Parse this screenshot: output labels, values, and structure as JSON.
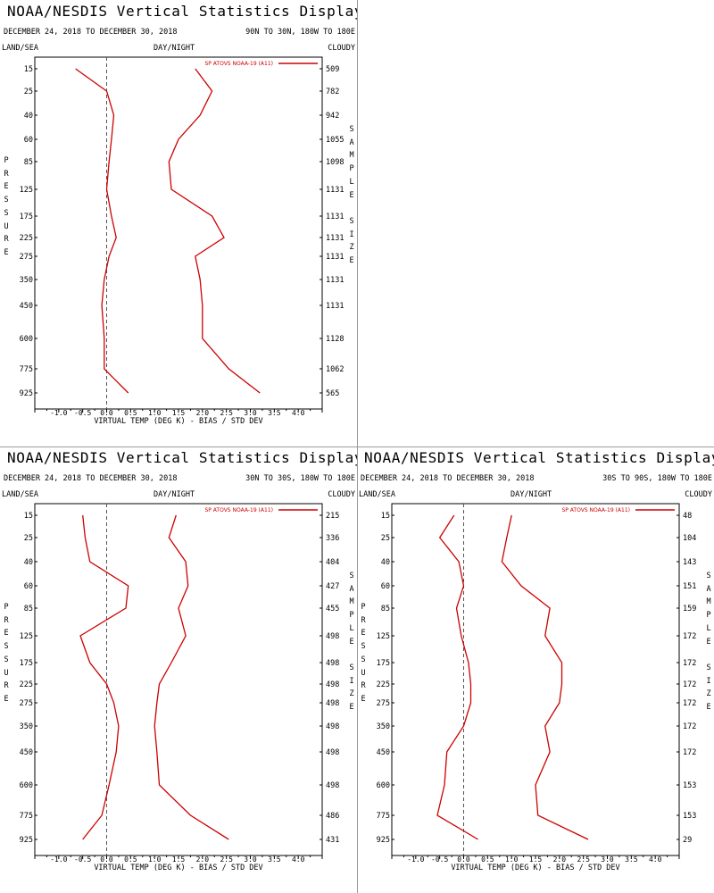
{
  "page": {
    "title": "NOAA/NESDIS Vertical Statistics Display",
    "date_range": "DECEMBER 24, 2018 TO DECEMBER 30, 2018",
    "land_sea": "LAND/SEA",
    "day_night": "DAY/NIGHT",
    "cloudy": "CLOUDY",
    "left_axis_label": "PRESSURE",
    "right_axis_label": "SAMPLE SIZE",
    "line_color": "#cc0000",
    "zero_line_color": "#555555"
  },
  "chart_data": [
    {
      "type": "line",
      "region": "90N TO 30N, 180W TO 180E",
      "xlabel": "VIRTUAL TEMP (DEG K) - BIAS / STD DEV",
      "ylabel": "PRESSURE",
      "xlim": [
        -1.5,
        4.5
      ],
      "xticks": [
        "-1.0",
        "-0.5",
        "0.0",
        "0.5",
        "1.0",
        "1.5",
        "2.0",
        "2.5",
        "3.0",
        "3.5",
        "4.0"
      ],
      "pressure_levels": [
        "15",
        "25",
        "40",
        "60",
        "85",
        "125",
        "175",
        "225",
        "275",
        "350",
        "450",
        "600",
        "775",
        "925"
      ],
      "sample_size": [
        "509",
        "782",
        "942",
        "1055",
        "1098",
        "1131",
        "1131",
        "1131",
        "1131",
        "1131",
        "1131",
        "1128",
        "1062",
        "565"
      ],
      "series": [
        {
          "name": "SP ATOVS NOAA-19 (A11)",
          "role": "bias",
          "values": [
            -0.65,
            0.0,
            0.15,
            0.1,
            0.05,
            0.0,
            0.1,
            0.2,
            0.05,
            -0.05,
            -0.1,
            -0.05,
            -0.05,
            0.45
          ]
        },
        {
          "role": "std_dev",
          "values": [
            1.85,
            2.2,
            1.95,
            1.5,
            1.3,
            1.35,
            2.2,
            2.45,
            1.85,
            1.95,
            2.0,
            2.0,
            2.55,
            3.2
          ]
        }
      ]
    },
    {
      "type": "line",
      "region": "30N TO 30S, 180W TO 180E",
      "xlabel": "VIRTUAL TEMP (DEG K) - BIAS / STD DEV",
      "ylabel": "PRESSURE",
      "xlim": [
        -1.5,
        4.5
      ],
      "xticks": [
        "-1.0",
        "-0.5",
        "0.0",
        "0.5",
        "1.0",
        "1.5",
        "2.0",
        "2.5",
        "3.0",
        "3.5",
        "4.0"
      ],
      "pressure_levels": [
        "15",
        "25",
        "40",
        "60",
        "85",
        "125",
        "175",
        "225",
        "275",
        "350",
        "450",
        "600",
        "775",
        "925"
      ],
      "sample_size": [
        "215",
        "336",
        "404",
        "427",
        "455",
        "498",
        "498",
        "498",
        "498",
        "498",
        "498",
        "498",
        "486",
        "431"
      ],
      "series": [
        {
          "name": "SP ATOVS NOAA-19 (A11)",
          "role": "bias",
          "values": [
            -0.5,
            -0.45,
            -0.35,
            0.45,
            0.4,
            -0.55,
            -0.35,
            0.0,
            0.15,
            0.25,
            0.2,
            0.05,
            -0.1,
            -0.5
          ]
        },
        {
          "role": "std_dev",
          "values": [
            1.45,
            1.3,
            1.65,
            1.7,
            1.5,
            1.65,
            1.35,
            1.1,
            1.05,
            1.0,
            1.05,
            1.1,
            1.75,
            2.55
          ]
        }
      ]
    },
    {
      "type": "line",
      "region": "30S TO 90S, 180W TO 180E",
      "xlabel": "VIRTUAL TEMP (DEG K) - BIAS / STD DEV",
      "ylabel": "PRESSURE",
      "xlim": [
        -1.5,
        4.5
      ],
      "xticks": [
        "-1.0",
        "-0.5",
        "0.0",
        "0.5",
        "1.0",
        "1.5",
        "2.0",
        "2.5",
        "3.0",
        "3.5",
        "4.0"
      ],
      "pressure_levels": [
        "15",
        "25",
        "40",
        "60",
        "85",
        "125",
        "175",
        "225",
        "275",
        "350",
        "450",
        "600",
        "775",
        "925"
      ],
      "sample_size": [
        "48",
        "104",
        "143",
        "151",
        "159",
        "172",
        "172",
        "172",
        "172",
        "172",
        "172",
        "153",
        "153",
        "29"
      ],
      "series": [
        {
          "name": "SP ATOVS NOAA-19 (A11)",
          "role": "bias",
          "values": [
            -0.2,
            -0.5,
            -0.1,
            0.0,
            -0.15,
            -0.05,
            0.1,
            0.15,
            0.15,
            0.0,
            -0.35,
            -0.4,
            -0.55,
            0.3
          ]
        },
        {
          "role": "std_dev",
          "values": [
            1.0,
            0.9,
            0.8,
            1.2,
            1.8,
            1.7,
            2.05,
            2.05,
            2.0,
            1.7,
            1.8,
            1.5,
            1.55,
            2.6
          ]
        }
      ]
    }
  ]
}
